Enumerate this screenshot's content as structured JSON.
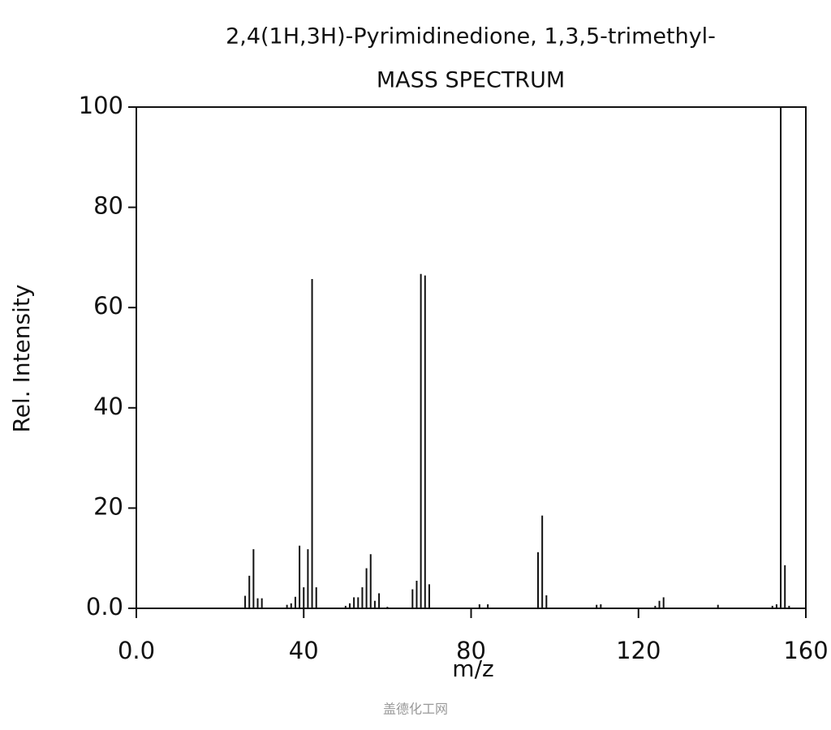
{
  "chart_data": {
    "type": "bar",
    "title": "2,4(1H,3H)-Pyrimidinedione, 1,3,5-trimethyl-",
    "subtitle": "MASS SPECTRUM",
    "x_label": "m/z",
    "y_label": "Rel. Intensity",
    "watermark": "盖德化工网",
    "color": "#111111",
    "x": [
      26,
      27,
      28,
      29,
      30,
      36,
      37,
      38,
      39,
      40,
      41,
      42,
      43,
      50,
      51,
      52,
      53,
      54,
      55,
      56,
      57,
      58,
      60,
      66,
      67,
      68,
      69,
      70,
      82,
      84,
      96,
      97,
      98,
      110,
      111,
      124,
      125,
      126,
      139,
      152,
      153,
      154,
      155,
      156
    ],
    "values": [
      2.5,
      6.5,
      11.8,
      2,
      2,
      0.7,
      1,
      2.3,
      12.5,
      4.2,
      11.8,
      65.7,
      4.2,
      0.5,
      1,
      2.2,
      2.2,
      4.2,
      8,
      10.8,
      1.5,
      3,
      0.3,
      3.8,
      5.5,
      66.7,
      66.4,
      4.8,
      0.8,
      0.8,
      11.2,
      18.5,
      2.6,
      0.7,
      0.8,
      0.5,
      1.5,
      2.2,
      0.7,
      0.5,
      0.8,
      100,
      8.6,
      0.5
    ],
    "xlim": [
      0,
      160
    ],
    "ylim": [
      0,
      100
    ],
    "xticks": [
      {
        "value": 0,
        "label": "0.0"
      },
      40,
      80,
      120,
      160
    ],
    "yticks": [
      {
        "value": 0,
        "label": "0.0"
      },
      20,
      40,
      60,
      80,
      100
    ]
  }
}
